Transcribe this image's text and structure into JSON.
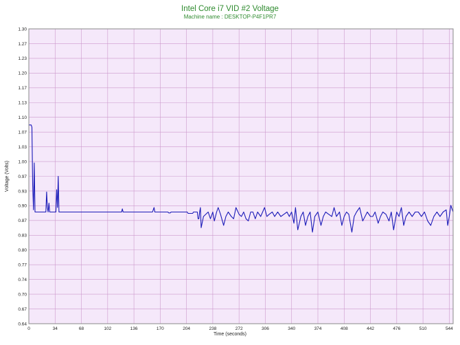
{
  "chart_data": {
    "type": "line",
    "title": "Intel Core i7 VID #2 Voltage",
    "subtitle": "Machine name : DESKTOP-P4F1PR7",
    "xlabel": "Time (seconds)",
    "ylabel": "Voltage (Volts)",
    "xlim": [
      0,
      549
    ],
    "ylim": [
      0.64,
      1.3
    ],
    "x_ticks": [
      0,
      34,
      68,
      102,
      136,
      170,
      204,
      238,
      272,
      306,
      340,
      374,
      408,
      442,
      476,
      510,
      544
    ],
    "y_ticks": [
      "0.64",
      "0.67",
      "0.70",
      "0.74",
      "0.77",
      "0.80",
      "0.83",
      "0.87",
      "0.90",
      "0.93",
      "0.97",
      "1.00",
      "1.03",
      "1.07",
      "1.10",
      "1.13",
      "1.17",
      "1.20",
      "1.23",
      "1.27",
      "1.30"
    ],
    "grid": true,
    "colors": {
      "line": "#1a1ab8",
      "plot_bg": "#f5e8fa",
      "grid": "#cc99cc",
      "title": "#2e8b2e"
    },
    "series": [
      {
        "values": [
          [
            0,
            1.085
          ],
          [
            3,
            1.085
          ],
          [
            4,
            1.08
          ],
          [
            5,
            0.95
          ],
          [
            6,
            0.895
          ],
          [
            7,
            1.0
          ],
          [
            8,
            0.89
          ],
          [
            10,
            0.89
          ],
          [
            22,
            0.89
          ],
          [
            23,
            0.935
          ],
          [
            24,
            0.9
          ],
          [
            25,
            0.89
          ],
          [
            26,
            0.91
          ],
          [
            27,
            0.89
          ],
          [
            35,
            0.89
          ],
          [
            36,
            0.94
          ],
          [
            37,
            0.9
          ],
          [
            38,
            0.97
          ],
          [
            39,
            0.89
          ],
          [
            120,
            0.89
          ],
          [
            121,
            0.897
          ],
          [
            122,
            0.89
          ],
          [
            160,
            0.89
          ],
          [
            161,
            0.895
          ],
          [
            162,
            0.9
          ],
          [
            163,
            0.89
          ],
          [
            180,
            0.89
          ],
          [
            181,
            0.888
          ],
          [
            183,
            0.888
          ],
          [
            184,
            0.89
          ],
          [
            205,
            0.89
          ],
          [
            206,
            0.887
          ],
          [
            212,
            0.887
          ],
          [
            213,
            0.89
          ],
          [
            218,
            0.89
          ],
          [
            219,
            0.875
          ],
          [
            220,
            0.875
          ],
          [
            221,
            0.89
          ],
          [
            222,
            0.9
          ],
          [
            223,
            0.855
          ],
          [
            226,
            0.88
          ],
          [
            232,
            0.89
          ],
          [
            235,
            0.875
          ],
          [
            238,
            0.89
          ],
          [
            240,
            0.87
          ],
          [
            243,
            0.89
          ],
          [
            245,
            0.9
          ],
          [
            248,
            0.885
          ],
          [
            252,
            0.86
          ],
          [
            255,
            0.88
          ],
          [
            258,
            0.89
          ],
          [
            262,
            0.88
          ],
          [
            265,
            0.875
          ],
          [
            268,
            0.9
          ],
          [
            272,
            0.885
          ],
          [
            275,
            0.88
          ],
          [
            278,
            0.89
          ],
          [
            281,
            0.875
          ],
          [
            284,
            0.87
          ],
          [
            287,
            0.89
          ],
          [
            290,
            0.89
          ],
          [
            293,
            0.875
          ],
          [
            296,
            0.89
          ],
          [
            300,
            0.88
          ],
          [
            305,
            0.9
          ],
          [
            308,
            0.88
          ],
          [
            311,
            0.885
          ],
          [
            315,
            0.89
          ],
          [
            318,
            0.88
          ],
          [
            322,
            0.89
          ],
          [
            326,
            0.88
          ],
          [
            330,
            0.885
          ],
          [
            334,
            0.89
          ],
          [
            337,
            0.88
          ],
          [
            340,
            0.89
          ],
          [
            343,
            0.865
          ],
          [
            345,
            0.9
          ],
          [
            348,
            0.85
          ],
          [
            352,
            0.88
          ],
          [
            355,
            0.89
          ],
          [
            358,
            0.86
          ],
          [
            361,
            0.88
          ],
          [
            364,
            0.89
          ],
          [
            367,
            0.845
          ],
          [
            370,
            0.88
          ],
          [
            374,
            0.89
          ],
          [
            378,
            0.86
          ],
          [
            381,
            0.88
          ],
          [
            384,
            0.89
          ],
          [
            388,
            0.885
          ],
          [
            392,
            0.88
          ],
          [
            395,
            0.9
          ],
          [
            398,
            0.88
          ],
          [
            402,
            0.89
          ],
          [
            405,
            0.86
          ],
          [
            408,
            0.88
          ],
          [
            411,
            0.89
          ],
          [
            414,
            0.885
          ],
          [
            418,
            0.845
          ],
          [
            421,
            0.88
          ],
          [
            424,
            0.89
          ],
          [
            428,
            0.9
          ],
          [
            432,
            0.87
          ],
          [
            435,
            0.88
          ],
          [
            438,
            0.89
          ],
          [
            442,
            0.88
          ],
          [
            445,
            0.88
          ],
          [
            448,
            0.89
          ],
          [
            452,
            0.865
          ],
          [
            455,
            0.88
          ],
          [
            458,
            0.89
          ],
          [
            462,
            0.885
          ],
          [
            466,
            0.87
          ],
          [
            469,
            0.89
          ],
          [
            472,
            0.85
          ],
          [
            476,
            0.89
          ],
          [
            479,
            0.88
          ],
          [
            482,
            0.9
          ],
          [
            485,
            0.86
          ],
          [
            488,
            0.88
          ],
          [
            492,
            0.89
          ],
          [
            496,
            0.88
          ],
          [
            500,
            0.89
          ],
          [
            504,
            0.89
          ],
          [
            508,
            0.88
          ],
          [
            512,
            0.89
          ],
          [
            516,
            0.87
          ],
          [
            520,
            0.86
          ],
          [
            524,
            0.88
          ],
          [
            528,
            0.89
          ],
          [
            532,
            0.88
          ],
          [
            536,
            0.89
          ],
          [
            540,
            0.895
          ],
          [
            542,
            0.86
          ],
          [
            544,
            0.88
          ],
          [
            546,
            0.905
          ],
          [
            549,
            0.89
          ]
        ]
      }
    ]
  }
}
